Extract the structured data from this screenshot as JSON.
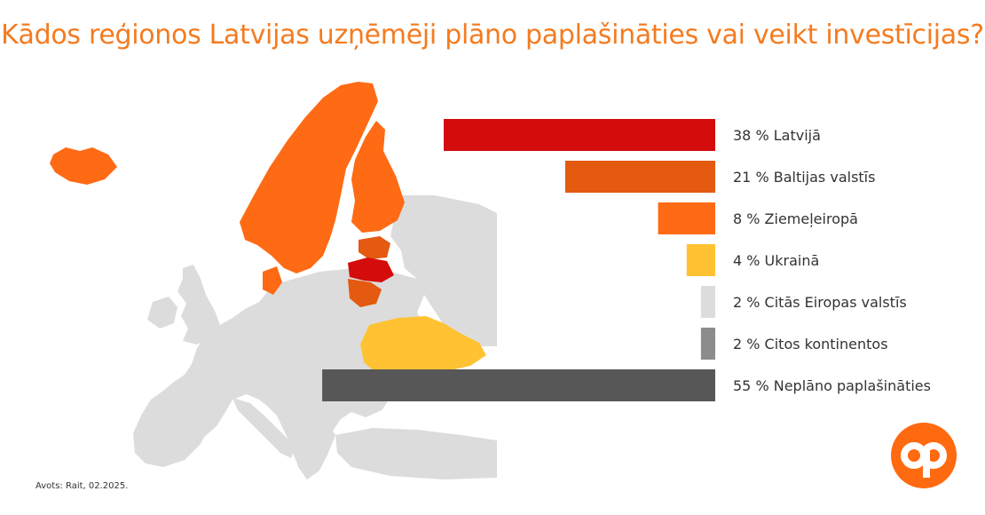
{
  "title": "Kādos reģionos Latvijas uzņēmēji plāno paplašināties vai veikt investīcijas?",
  "source": "Avots: Rait, 02.2025.",
  "colors": {
    "title": "#f47b20",
    "latvia": "#d50c0c",
    "baltics": "#e35a10",
    "nordics": "#ff6a14",
    "ukraine": "#ffc232",
    "europe": "#dcdcdc",
    "continents": "#8c8c8c",
    "no_plans": "#575757",
    "logo": "#ff6a10"
  },
  "logo_icon": "op-logo-icon",
  "chart_data": {
    "type": "bar",
    "orientation": "horizontal",
    "unit": "%",
    "categories": [
      "Latvijā",
      "Baltijas valstīs",
      "Ziemeļeiropā",
      "Ukrainā",
      "Citās Eiropas valstīs",
      "Citos kontinentos",
      "Neplāno paplašināties"
    ],
    "values": [
      38,
      21,
      8,
      4,
      2,
      2,
      55
    ],
    "labels": [
      "38 % Latvijā",
      "21 % Baltijas valstīs",
      "8 % Ziemeļeiropā",
      "4 % Ukrainā",
      "2 % Citās Eiropas valstīs",
      "2 % Citos kontinentos",
      "55 % Neplāno paplašināties"
    ],
    "colors": [
      "#d50c0c",
      "#e35a10",
      "#ff6a14",
      "#ffc232",
      "#dcdcdc",
      "#8c8c8c",
      "#575757"
    ],
    "bar_direction": "right-to-left",
    "title": "Kādos reģionos Latvijas uzņēmēji plāno paplašināties vai veikt investīcijas?",
    "xlabel": "",
    "ylabel": "",
    "grid": false,
    "legend": "none"
  }
}
